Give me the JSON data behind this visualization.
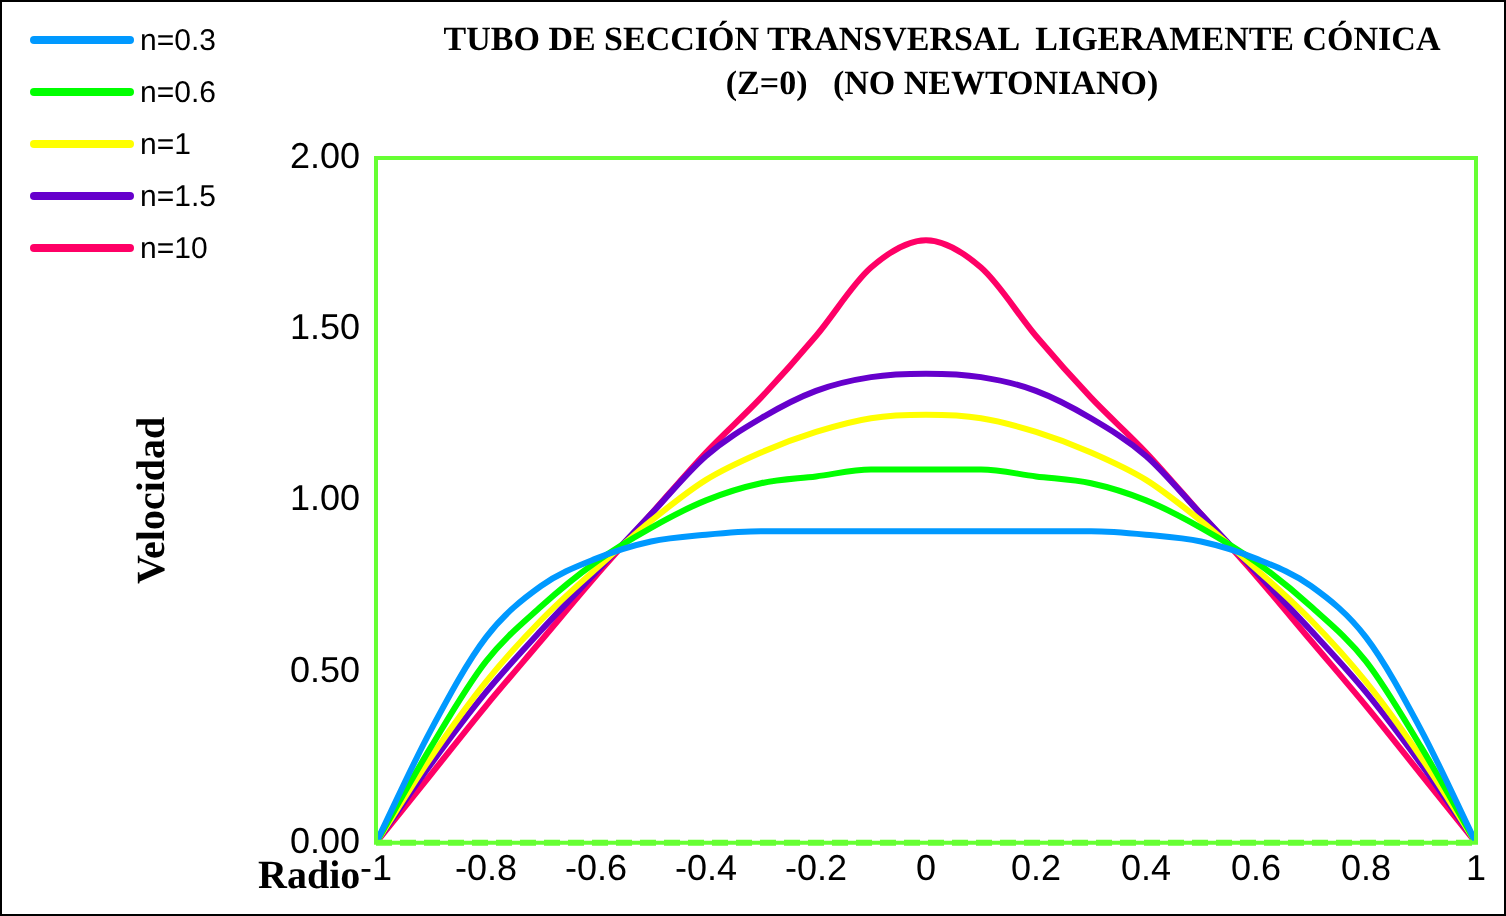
{
  "chart_data": {
    "type": "line",
    "title": "TUBO DE SECCIÓN TRANSVERSAL  LIGERAMENTE CÓNICA  (Z=0)   (NO NEWTONIANO)",
    "xlabel": "Radio",
    "ylabel": "Velocidad",
    "x": [
      -1,
      -0.9,
      -0.8,
      -0.7,
      -0.6,
      -0.5,
      -0.4,
      -0.3,
      -0.2,
      -0.1,
      0,
      0.1,
      0.2,
      0.3,
      0.4,
      0.5,
      0.6,
      0.7,
      0.8,
      0.9,
      1
    ],
    "series": [
      {
        "name": "n=0.3",
        "color": "#0099ff",
        "values": [
          0,
          0.33,
          0.6,
          0.75,
          0.83,
          0.88,
          0.9,
          0.91,
          0.91,
          0.91,
          0.91,
          0.91,
          0.91,
          0.91,
          0.9,
          0.88,
          0.83,
          0.75,
          0.6,
          0.33,
          0
        ]
      },
      {
        "name": "n=0.6",
        "color": "#00ff00",
        "values": [
          0,
          0.28,
          0.53,
          0.69,
          0.82,
          0.92,
          1.0,
          1.05,
          1.07,
          1.09,
          1.09,
          1.09,
          1.07,
          1.05,
          1.0,
          0.92,
          0.82,
          0.69,
          0.53,
          0.28,
          0
        ]
      },
      {
        "name": "n=1",
        "color": "#ffff00",
        "values": [
          0,
          0.25,
          0.47,
          0.65,
          0.8,
          0.94,
          1.06,
          1.14,
          1.2,
          1.24,
          1.25,
          1.24,
          1.2,
          1.14,
          1.06,
          0.94,
          0.8,
          0.65,
          0.47,
          0.25,
          0
        ]
      },
      {
        "name": "n=1.5",
        "color": "#6600cc",
        "values": [
          0,
          0.23,
          0.44,
          0.62,
          0.79,
          0.96,
          1.13,
          1.24,
          1.32,
          1.36,
          1.37,
          1.36,
          1.32,
          1.24,
          1.13,
          0.96,
          0.79,
          0.62,
          0.44,
          0.23,
          0
        ]
      },
      {
        "name": "n=10",
        "color": "#ff0066",
        "values": [
          0,
          0.2,
          0.4,
          0.59,
          0.78,
          0.96,
          1.14,
          1.3,
          1.48,
          1.68,
          1.76,
          1.68,
          1.48,
          1.3,
          1.14,
          0.96,
          0.78,
          0.59,
          0.4,
          0.2,
          0
        ]
      }
    ],
    "xlim": [
      -1,
      1
    ],
    "xticks": [
      -1,
      -0.8,
      -0.6,
      -0.4,
      -0.2,
      0,
      0.2,
      0.4,
      0.6,
      0.8,
      1
    ],
    "ylim": [
      0,
      2
    ],
    "yticks": [
      {
        "value": 0,
        "label": "0.00"
      },
      {
        "value": 0.5,
        "label": "0.50"
      },
      {
        "value": 1,
        "label": "1.00"
      },
      {
        "value": 1.5,
        "label": "1.50"
      },
      {
        "value": 2,
        "label": "2.00"
      }
    ],
    "ref_lines": [
      {
        "axis": "y",
        "value": 0,
        "color": "#66ff33",
        "line_style": "dashed"
      }
    ],
    "grid": false,
    "legend": "top left",
    "marker": "none",
    "line_style": "solid"
  }
}
